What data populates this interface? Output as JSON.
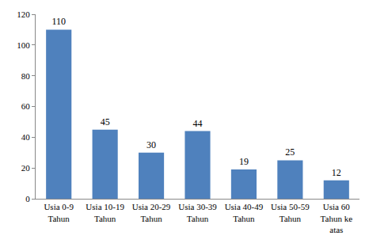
{
  "chart_data": {
    "type": "bar",
    "categories": [
      "Usia 0-9 Tahun",
      "Usia 10-19 Tahun",
      "Usia 20-29 Tahun",
      "Usia 30-39 Tahun",
      "Usia 40-49 Tahun",
      "Usia 50-59 Tahun",
      "Usia 60 Tahun ke atas"
    ],
    "values": [
      110,
      45,
      30,
      44,
      19,
      25,
      12
    ],
    "color": "#4f81bd",
    "ylim": [
      0,
      120
    ],
    "yticks": [
      0,
      20,
      40,
      60,
      80,
      100,
      120
    ],
    "grid": false,
    "data_labels": true
  }
}
